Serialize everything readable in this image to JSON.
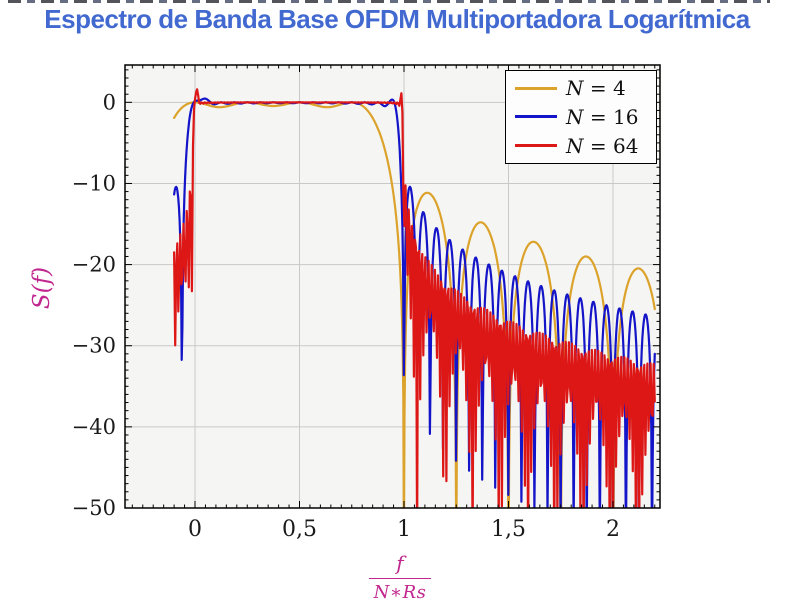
{
  "title": {
    "text": "Espectro de Banda Base OFDM Multiportadora Logarítmica",
    "color": "#4169D0"
  },
  "colors": {
    "axis_label_magenta": "#C0268E",
    "plot_background": "#f5f5f3",
    "grid": "#c9c9c9",
    "frame": "#000000",
    "page_background": "#ffffff"
  },
  "chart_data": {
    "type": "line",
    "title": "Espectro de Banda Base OFDM Multiportadora Logarítmica",
    "ylabel": "S(f)",
    "xlabel_numerator": "f",
    "xlabel_denominator": "N∗Rs",
    "x_domain": [
      -0.1,
      2.2
    ],
    "xlim": [
      -0.335,
      2.225
    ],
    "ylim": [
      -50,
      4.6
    ],
    "x_major_ticks": [
      {
        "v": 0,
        "label": "0"
      },
      {
        "v": 0.5,
        "label": "0,5"
      },
      {
        "v": 1,
        "label": "1"
      },
      {
        "v": 1.5,
        "label": "1,5"
      },
      {
        "v": 2,
        "label": "2"
      }
    ],
    "y_major_ticks": [
      {
        "v": 0,
        "label": "0"
      },
      {
        "v": -10,
        "label": "−10"
      },
      {
        "v": -20,
        "label": "−20"
      },
      {
        "v": -30,
        "label": "−30"
      },
      {
        "v": -40,
        "label": "−40"
      },
      {
        "v": -50,
        "label": "−50"
      }
    ],
    "x_minor_step": 0.05,
    "y_minor_step": 1,
    "grid": "major",
    "legend_position": "top-right",
    "series": [
      {
        "name": "N4",
        "label": "N = 4",
        "N": 4,
        "color": "#DCA32C",
        "samples": 800,
        "flat_top_db": 0,
        "first_sidelobe_db": -11.5,
        "sidelobe_near_x2_db": -24
      },
      {
        "name": "N16",
        "label": "N = 16",
        "N": 16,
        "color": "#1414C8",
        "samples": 700,
        "flat_top_db": 0,
        "first_sidelobe_db": -10.5,
        "sidelobe_near_x2_db": -25
      },
      {
        "name": "N64",
        "label": "N = 64",
        "N": 64,
        "color": "#DD1616",
        "samples": 460,
        "flat_top_db": 0,
        "first_sidelobe_db": -13,
        "sidelobe_near_x2_db": -30
      }
    ],
    "edge_overshoot_db": {
      "N4": 0,
      "N16": 0.8,
      "N64": 2.0
    },
    "formula": "S(x) = 10·log10( Σ_{k=0..N−1} sinc²(N·x − k) ), sinc(u)=sin(πu)/(πu), x = f/(N·Rs), flat 0 dB passband on [0,1]"
  }
}
